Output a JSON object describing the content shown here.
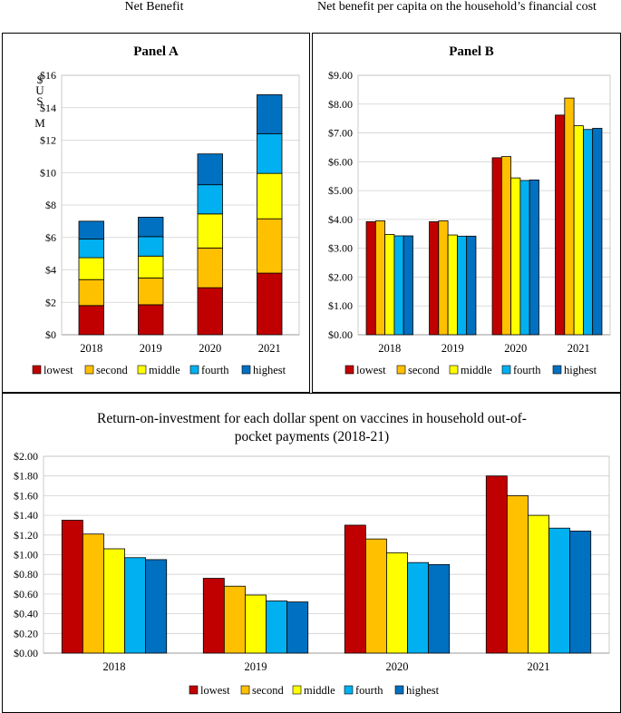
{
  "top_titles": {
    "left": "Net Benefit",
    "right": "Net benefit per capita on the household’s financial cost"
  },
  "series_colors": [
    "#c00000",
    "#ffc000",
    "#ffff00",
    "#00b0f0",
    "#0070c0"
  ],
  "chart_data": [
    {
      "type": "bar",
      "stacked": true,
      "title": "Panel A",
      "ylabel": "$US M",
      "xlabel": "",
      "categories": [
        "2018",
        "2019",
        "2020",
        "2021"
      ],
      "ylim": [
        0,
        16
      ],
      "yticks": [
        "$0",
        "$2",
        "$4",
        "$6",
        "$8",
        "$10",
        "$12",
        "$14",
        "$16"
      ],
      "grid": true,
      "legend": "bottom",
      "series": [
        {
          "name": "lowest",
          "values": [
            1.8,
            1.85,
            2.9,
            3.8
          ]
        },
        {
          "name": "second",
          "values": [
            1.6,
            1.65,
            2.45,
            3.35
          ]
        },
        {
          "name": "middle",
          "values": [
            1.35,
            1.35,
            2.1,
            2.8
          ]
        },
        {
          "name": "fourth",
          "values": [
            1.15,
            1.2,
            1.8,
            2.45
          ]
        },
        {
          "name": "highest",
          "values": [
            1.1,
            1.2,
            1.9,
            2.4
          ]
        }
      ]
    },
    {
      "type": "bar",
      "stacked": false,
      "title": "Panel B",
      "xlabel": "",
      "ylabel": "",
      "categories": [
        "2018",
        "2019",
        "2020",
        "2021"
      ],
      "ylim": [
        0,
        9
      ],
      "yticks": [
        "$0.00",
        "$1.00",
        "$2.00",
        "$3.00",
        "$4.00",
        "$5.00",
        "$6.00",
        "$7.00",
        "$8.00",
        "$9.00"
      ],
      "grid": true,
      "legend": "bottom",
      "series": [
        {
          "name": "lowest",
          "values": [
            3.92,
            3.92,
            6.14,
            7.62
          ]
        },
        {
          "name": "second",
          "values": [
            3.95,
            3.95,
            6.18,
            8.21
          ]
        },
        {
          "name": "middle",
          "values": [
            3.48,
            3.46,
            5.44,
            7.25
          ]
        },
        {
          "name": "fourth",
          "values": [
            3.43,
            3.42,
            5.35,
            7.12
          ]
        },
        {
          "name": "highest",
          "values": [
            3.43,
            3.42,
            5.37,
            7.16
          ]
        }
      ]
    },
    {
      "type": "bar",
      "stacked": false,
      "title": "Return-on-investment for each dollar spent on vaccines in household out-of-pocket payments (2018-21)",
      "xlabel": "",
      "ylabel": "",
      "categories": [
        "2018",
        "2019",
        "2020",
        "2021"
      ],
      "ylim": [
        0,
        2
      ],
      "yticks": [
        "$0.00",
        "$0.20",
        "$0.40",
        "$0.60",
        "$0.80",
        "$1.00",
        "$1.20",
        "$1.40",
        "$1.60",
        "$1.80",
        "$2.00"
      ],
      "grid": true,
      "legend": "bottom",
      "series": [
        {
          "name": "lowest",
          "values": [
            1.35,
            0.76,
            1.3,
            1.8
          ]
        },
        {
          "name": "second",
          "values": [
            1.21,
            0.68,
            1.16,
            1.6
          ]
        },
        {
          "name": "middle",
          "values": [
            1.06,
            0.59,
            1.02,
            1.4
          ]
        },
        {
          "name": "fourth",
          "values": [
            0.97,
            0.53,
            0.92,
            1.27
          ]
        },
        {
          "name": "highest",
          "values": [
            0.95,
            0.52,
            0.9,
            1.24
          ]
        }
      ]
    }
  ]
}
